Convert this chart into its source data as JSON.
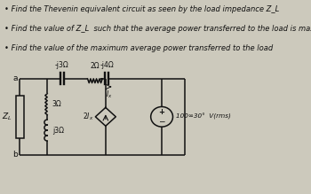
{
  "background_color": "#ccc9bc",
  "text_color": "#111111",
  "bullet_points": [
    "Find the Thevenin equivalent circuit as seen by the load impedance Z_L",
    "Find the value of Z_L  such that the average power transferred to the load is maximum.",
    "Find the value of the maximum average power transferred to the load"
  ],
  "circuit": {
    "xa": 0.09,
    "xn1": 0.22,
    "xn2": 0.38,
    "xn3": 0.57,
    "xn4": 0.73,
    "xend": 0.87,
    "ytop": 0.595,
    "ybot": 0.2,
    "r3_label": "3Ω",
    "jx3_label": "j3Ω",
    "cap1_label": "-j3Ω",
    "r2_label": "2Ω",
    "cap2_label": "-j4Ω",
    "dep_label": "2I_x",
    "ix_label": "I_x",
    "vs_label": "100∞30°  V(rms)"
  }
}
